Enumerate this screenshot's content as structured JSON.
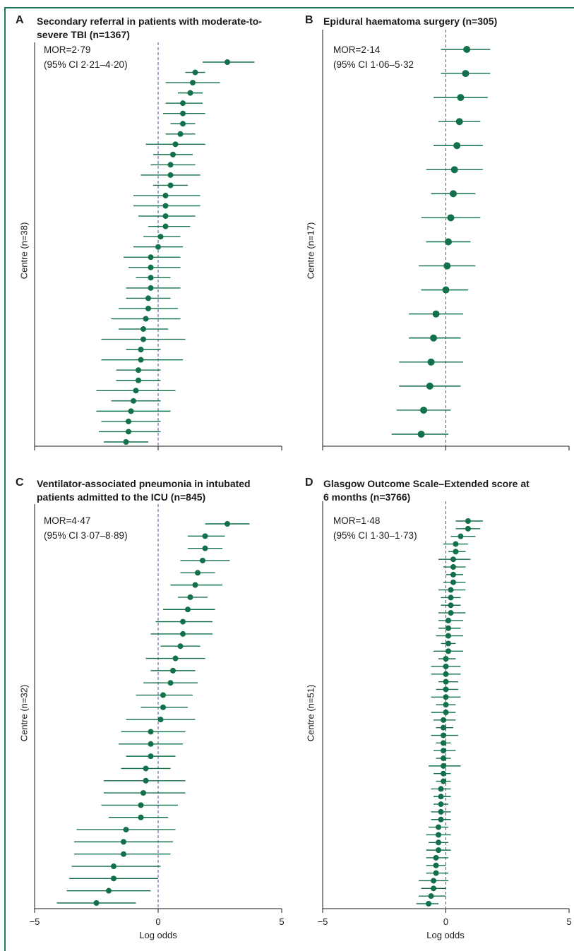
{
  "colors": {
    "frame": "#1f7a5c",
    "marker": "#12704a",
    "axis": "#1a1a1a",
    "refline": "#3a5a8c"
  },
  "chart_data": [
    {
      "id": "A",
      "type": "forest",
      "letter": "A",
      "title_lines": [
        "Secondary referral in patients with moderate-to-",
        "severe TBI (n=1367)"
      ],
      "ylabel": "Centre (n=38)",
      "annotation": [
        "MOR=2·79",
        "(95% CI 2·21–4·20)"
      ],
      "xlim": [
        -5,
        5
      ],
      "estimates": [
        2.8,
        1.5,
        1.4,
        1.3,
        1.0,
        1.0,
        1.0,
        0.9,
        0.7,
        0.6,
        0.5,
        0.5,
        0.5,
        0.3,
        0.3,
        0.3,
        0.3,
        0.1,
        0.0,
        -0.3,
        -0.3,
        -0.3,
        -0.3,
        -0.4,
        -0.4,
        -0.5,
        -0.6,
        -0.6,
        -0.7,
        -0.7,
        -0.8,
        -0.8,
        -0.9,
        -1.0,
        -1.1,
        -1.2,
        -1.2,
        -1.3
      ],
      "lower": [
        1.8,
        1.1,
        0.3,
        0.8,
        0.3,
        0.2,
        0.5,
        0.3,
        -0.5,
        -0.2,
        -0.3,
        -0.7,
        -0.2,
        -1.0,
        -1.0,
        -0.8,
        -0.4,
        -0.6,
        -1.0,
        -1.4,
        -1.2,
        -0.9,
        -1.3,
        -1.3,
        -1.6,
        -1.9,
        -1.6,
        -2.3,
        -1.3,
        -2.3,
        -1.7,
        -1.7,
        -2.5,
        -1.9,
        -2.5,
        -2.3,
        -2.4,
        -2.2
      ],
      "upper": [
        3.9,
        1.9,
        2.5,
        1.8,
        1.8,
        1.9,
        1.5,
        1.5,
        1.9,
        1.4,
        1.5,
        1.7,
        1.2,
        1.7,
        1.7,
        1.5,
        1.3,
        0.9,
        1.0,
        0.9,
        0.9,
        0.5,
        0.9,
        0.5,
        0.8,
        0.9,
        0.4,
        1.1,
        0.1,
        1.0,
        0.1,
        0.1,
        0.7,
        0.1,
        0.5,
        0.1,
        0.1,
        -0.4
      ]
    },
    {
      "id": "B",
      "type": "forest",
      "letter": "B",
      "title_lines": [
        "Epidural haematoma surgery (n=305)"
      ],
      "ylabel": "Centre (n=17)",
      "annotation": [
        "MOR=2·14",
        "(95% CI 1·06–5·32"
      ],
      "xlim": [
        -5,
        5
      ],
      "estimates": [
        0.85,
        0.8,
        0.6,
        0.55,
        0.45,
        0.35,
        0.3,
        0.2,
        0.1,
        0.05,
        0.0,
        -0.4,
        -0.5,
        -0.6,
        -0.65,
        -0.9,
        -1.0
      ],
      "lower": [
        -0.2,
        -0.2,
        -0.5,
        -0.3,
        -0.5,
        -0.8,
        -0.6,
        -1.0,
        -0.8,
        -1.1,
        -1.0,
        -1.5,
        -1.5,
        -1.9,
        -1.9,
        -2.0,
        -2.2
      ],
      "upper": [
        1.8,
        1.8,
        1.7,
        1.4,
        1.5,
        1.5,
        1.2,
        1.4,
        1.0,
        1.2,
        0.9,
        0.7,
        0.6,
        0.7,
        0.6,
        0.2,
        0.1
      ]
    },
    {
      "id": "C",
      "type": "forest",
      "letter": "C",
      "title_lines": [
        "Ventilator-associated pneumonia in intubated",
        "patients admitted to the ICU (n=845)"
      ],
      "ylabel": "Centre (n=32)",
      "annotation": [
        "MOR=4·47",
        "(95% CI 3·07–8·89)"
      ],
      "xlim": [
        -5,
        5
      ],
      "estimates": [
        2.8,
        1.9,
        1.9,
        1.8,
        1.6,
        1.5,
        1.3,
        1.2,
        1.0,
        1.0,
        0.9,
        0.7,
        0.6,
        0.5,
        0.2,
        0.2,
        0.1,
        -0.3,
        -0.3,
        -0.3,
        -0.5,
        -0.5,
        -0.6,
        -0.7,
        -0.7,
        -1.3,
        -1.4,
        -1.4,
        -1.8,
        -1.8,
        -2.0,
        -2.5
      ],
      "lower": [
        1.9,
        1.2,
        1.2,
        0.9,
        0.9,
        0.5,
        0.8,
        0.2,
        -0.1,
        -0.3,
        0.1,
        -0.5,
        -0.3,
        -0.6,
        -0.9,
        -0.7,
        -1.3,
        -1.5,
        -1.6,
        -1.3,
        -1.5,
        -2.2,
        -2.2,
        -2.3,
        -2.0,
        -3.3,
        -3.4,
        -3.4,
        -3.5,
        -3.6,
        -3.7,
        -4.1
      ],
      "upper": [
        3.7,
        2.7,
        2.6,
        2.9,
        2.3,
        2.6,
        2.0,
        2.3,
        2.2,
        2.2,
        1.7,
        1.9,
        1.5,
        1.6,
        1.4,
        1.2,
        1.5,
        1.1,
        1.0,
        0.7,
        0.5,
        1.1,
        1.1,
        0.8,
        0.4,
        0.7,
        0.6,
        0.5,
        0.1,
        0.0,
        -0.3,
        -0.9
      ]
    },
    {
      "id": "D",
      "type": "forest",
      "letter": "D",
      "title_lines": [
        "Glasgow Outcome Scale–Extended score at",
        "6 months (n=3766)"
      ],
      "ylabel": "Centre (n=51)",
      "annotation": [
        "MOR=1·48",
        "(95% CI 1·30–1·73)"
      ],
      "xlim": [
        -5,
        5
      ],
      "estimates": [
        0.9,
        0.9,
        0.6,
        0.4,
        0.4,
        0.3,
        0.3,
        0.3,
        0.3,
        0.2,
        0.2,
        0.2,
        0.2,
        0.1,
        0.1,
        0.1,
        0.1,
        0.1,
        0.0,
        0.0,
        0.0,
        0.0,
        0.0,
        0.0,
        0.0,
        0.0,
        -0.1,
        -0.1,
        -0.1,
        -0.1,
        -0.1,
        -0.1,
        -0.1,
        -0.1,
        -0.1,
        -0.2,
        -0.2,
        -0.2,
        -0.2,
        -0.2,
        -0.3,
        -0.3,
        -0.3,
        -0.3,
        -0.4,
        -0.4,
        -0.4,
        -0.5,
        -0.5,
        -0.6,
        -0.7
      ],
      "lower": [
        0.4,
        0.4,
        0.2,
        -0.1,
        0.1,
        -0.3,
        -0.1,
        0.0,
        -0.1,
        -0.3,
        -0.2,
        -0.2,
        -0.3,
        -0.3,
        -0.3,
        -0.4,
        -0.2,
        -0.5,
        -0.3,
        -0.6,
        -0.6,
        -0.3,
        -0.4,
        -0.6,
        -0.4,
        -0.6,
        -0.5,
        -0.4,
        -0.6,
        -0.4,
        -0.5,
        -0.4,
        -0.7,
        -0.5,
        -0.4,
        -0.6,
        -0.5,
        -0.5,
        -0.6,
        -0.6,
        -0.7,
        -0.8,
        -0.7,
        -0.8,
        -0.8,
        -0.8,
        -0.8,
        -1.1,
        -1.0,
        -1.1,
        -1.2
      ],
      "upper": [
        1.5,
        1.4,
        1.2,
        0.9,
        0.8,
        1.0,
        0.8,
        0.7,
        0.8,
        0.8,
        0.6,
        0.6,
        0.8,
        0.7,
        0.6,
        0.7,
        0.4,
        0.7,
        0.4,
        0.6,
        0.6,
        0.5,
        0.5,
        0.6,
        0.4,
        0.4,
        0.4,
        0.3,
        0.5,
        0.2,
        0.4,
        0.2,
        0.6,
        0.2,
        0.2,
        0.2,
        0.2,
        0.1,
        0.2,
        0.2,
        0.1,
        0.2,
        0.1,
        0.2,
        0.1,
        0.0,
        0.1,
        0.1,
        0.0,
        0.0,
        -0.3
      ]
    }
  ],
  "x_axis_title": "Log odds",
  "x_ticks": [
    "−5",
    "0",
    "5"
  ]
}
